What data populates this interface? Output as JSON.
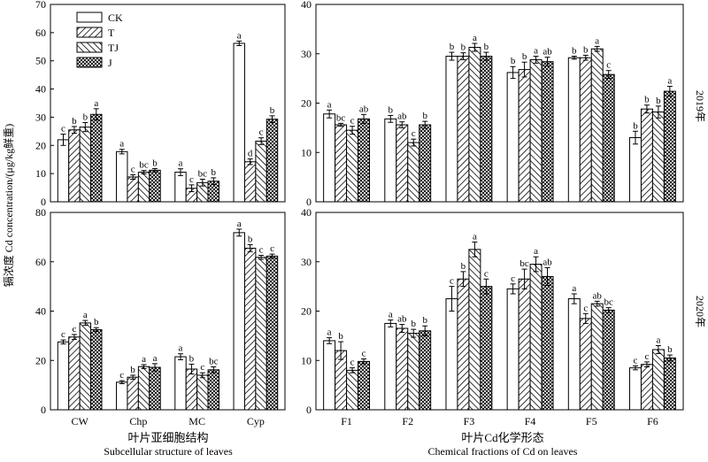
{
  "figure": {
    "ylabel": "镉浓度 Cd concentration/(μg/kg鲜重)",
    "left_xlabel_cn": "叶片亚细胞结构",
    "left_xlabel_en": "Subcellular structure of leaves",
    "right_xlabel_cn": "叶片Cd化学形态",
    "right_xlabel_en": "Chemical fractions of Cd on leaves",
    "row_labels": [
      "2019年",
      "2020年"
    ],
    "legend": [
      "CK",
      "T",
      "TJ",
      "J"
    ]
  },
  "chart_data": [
    {
      "type": "bar",
      "panel": "subcellular-2019",
      "categories": [
        "CW",
        "Chp",
        "MC",
        "Cyp"
      ],
      "ylim": [
        0,
        70
      ],
      "yticks": [
        0,
        10,
        20,
        30,
        40,
        50,
        60,
        70
      ],
      "series": [
        {
          "name": "CK",
          "values": [
            22,
            17.8,
            10.5,
            56.2
          ],
          "errors": [
            2,
            0.8,
            1.2,
            0.8
          ],
          "letters": [
            "c",
            "a",
            "a",
            "a"
          ]
        },
        {
          "name": "T",
          "values": [
            25.5,
            8.8,
            4.8,
            14.2
          ],
          "errors": [
            1.2,
            0.8,
            1.2,
            1
          ],
          "letters": [
            "b",
            "c",
            "c",
            "d"
          ]
        },
        {
          "name": "TJ",
          "values": [
            26.5,
            10.5,
            6.8,
            21.5
          ],
          "errors": [
            1.6,
            0.6,
            1.2,
            1.2
          ],
          "letters": [
            "b",
            "bc",
            "bc",
            "c"
          ]
        },
        {
          "name": "J",
          "values": [
            31,
            11.2,
            7.3,
            29.3
          ],
          "errors": [
            2,
            0.6,
            1.2,
            1.2
          ],
          "letters": [
            "a",
            "b",
            "b",
            "b"
          ]
        }
      ]
    },
    {
      "type": "bar",
      "panel": "fractions-2019",
      "categories": [
        "F1",
        "F2",
        "F3",
        "F4",
        "F5",
        "F6"
      ],
      "ylim": [
        0,
        40
      ],
      "yticks": [
        0,
        10,
        20,
        30,
        40
      ],
      "series": [
        {
          "name": "CK",
          "values": [
            17.8,
            16.8,
            29.5,
            26.2,
            29.2,
            13
          ],
          "errors": [
            0.8,
            0.7,
            0.8,
            1.2,
            0.3,
            1.3
          ],
          "letters": [
            "a",
            "b",
            "b",
            "b",
            "b",
            "b"
          ]
        },
        {
          "name": "T",
          "values": [
            15.6,
            15.6,
            29.5,
            26.8,
            29.2,
            18.8
          ],
          "errors": [
            0.3,
            0.6,
            0.7,
            1.5,
            0.5,
            0.8
          ],
          "letters": [
            "bc",
            "ab",
            "b",
            "b",
            "b",
            "b"
          ]
        },
        {
          "name": "TJ",
          "values": [
            14.5,
            12,
            31.3,
            28.8,
            31,
            18.2
          ],
          "errors": [
            0.8,
            0.7,
            0.8,
            0.7,
            0.5,
            1.2
          ],
          "letters": [
            "c",
            "c",
            "a",
            "a",
            "a",
            "b"
          ]
        },
        {
          "name": "J",
          "values": [
            16.8,
            15.6,
            29.5,
            28.4,
            25.8,
            22.4
          ],
          "errors": [
            0.9,
            0.7,
            0.8,
            0.9,
            0.8,
            1
          ],
          "letters": [
            "ab",
            "b",
            "b",
            "ab",
            "c",
            "a"
          ]
        }
      ]
    },
    {
      "type": "bar",
      "panel": "subcellular-2020",
      "categories": [
        "CW",
        "Chp",
        "MC",
        "Cyp"
      ],
      "ylim": [
        0,
        80
      ],
      "yticks": [
        0,
        20,
        40,
        60,
        80
      ],
      "series": [
        {
          "name": "CK",
          "values": [
            27.5,
            11.2,
            21.5,
            71.8
          ],
          "errors": [
            0.8,
            0.6,
            1.2,
            1.4
          ],
          "letters": [
            "c",
            "c",
            "a",
            "a"
          ]
        },
        {
          "name": "T",
          "values": [
            29.5,
            13.2,
            16.5,
            65.5
          ],
          "errors": [
            1,
            0.8,
            2,
            1.4
          ],
          "letters": [
            "c",
            "b",
            "b",
            "b"
          ]
        },
        {
          "name": "TJ",
          "values": [
            35.2,
            17.5,
            14,
            61.8
          ],
          "errors": [
            1,
            0.8,
            1,
            0.8
          ],
          "letters": [
            "a",
            "a",
            "c",
            "c"
          ]
        },
        {
          "name": "J",
          "values": [
            32.5,
            17.2,
            16.2,
            62.3
          ],
          "errors": [
            0.8,
            1.5,
            1.2,
            0.8
          ],
          "letters": [
            "b",
            "a",
            "bc",
            "c"
          ]
        }
      ]
    },
    {
      "type": "bar",
      "panel": "fractions-2020",
      "categories": [
        "F1",
        "F2",
        "F3",
        "F4",
        "F5",
        "F6"
      ],
      "ylim": [
        0,
        40
      ],
      "yticks": [
        0,
        10,
        20,
        30,
        40
      ],
      "series": [
        {
          "name": "CK",
          "values": [
            14,
            17.5,
            22.5,
            24.5,
            22.5,
            8.5
          ],
          "errors": [
            0.6,
            0.7,
            2.5,
            1,
            1,
            0.4
          ],
          "letters": [
            "a",
            "a",
            "c",
            "c",
            "a",
            "c"
          ]
        },
        {
          "name": "T",
          "values": [
            12,
            16.5,
            26.5,
            26.5,
            18.5,
            9.2
          ],
          "errors": [
            1.8,
            0.8,
            1.5,
            2,
            1,
            0.5
          ],
          "letters": [
            "b",
            "ab",
            "b",
            "bc",
            "c",
            "c"
          ]
        },
        {
          "name": "TJ",
          "values": [
            8,
            15.5,
            32.5,
            29.5,
            21.5,
            12.2
          ],
          "errors": [
            0.5,
            0.8,
            1.5,
            1.5,
            0.5,
            0.8
          ],
          "letters": [
            "c",
            "b",
            "a",
            "a",
            "ab",
            "a"
          ]
        },
        {
          "name": "J",
          "values": [
            9.8,
            16,
            25,
            27,
            20.2,
            10.5
          ],
          "errors": [
            0.5,
            1,
            1.5,
            1.8,
            0.5,
            0.6
          ],
          "letters": [
            "c",
            "b",
            "c",
            "ab",
            "bc",
            "b"
          ]
        }
      ]
    }
  ]
}
